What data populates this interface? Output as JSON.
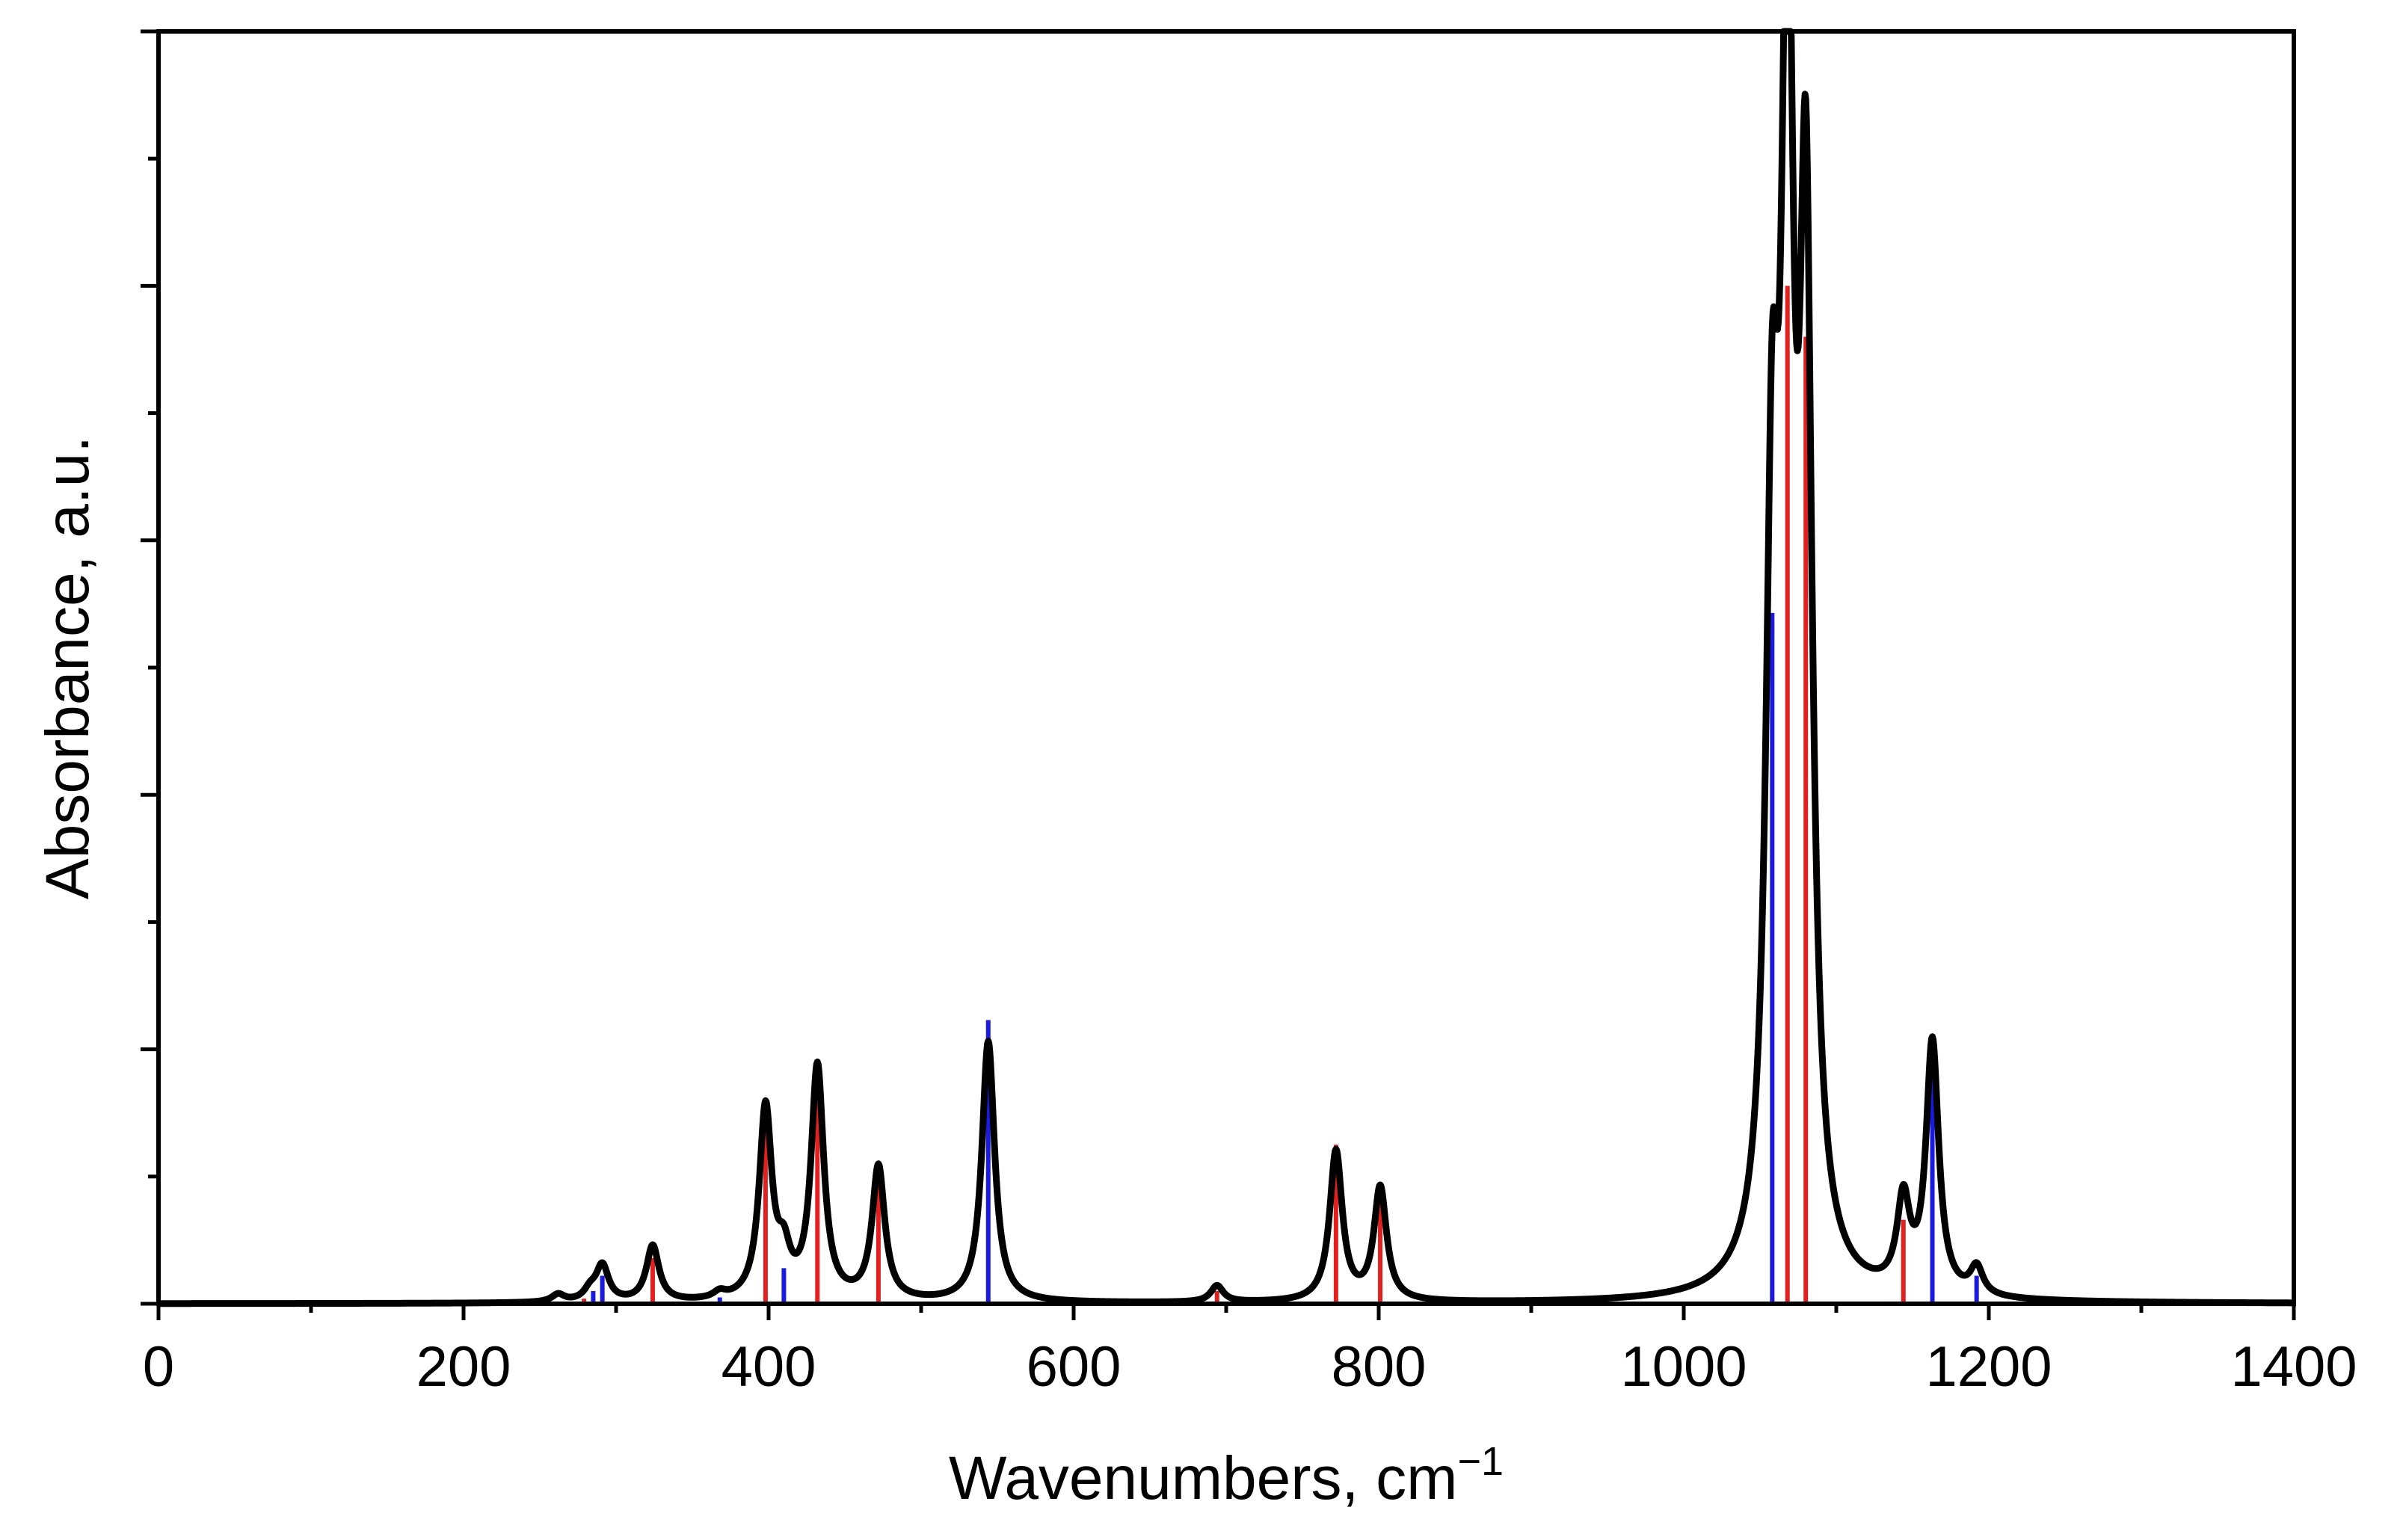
{
  "chart_data": {
    "type": "line",
    "title": "",
    "xlabel": "Wavenumbers, cm",
    "xlabel_superscript": "−1",
    "ylabel": "Absorbance, a.u.",
    "xlim": [
      0,
      1400
    ],
    "ylim": [
      0,
      1.0
    ],
    "x_ticks_major": [
      0,
      200,
      400,
      600,
      800,
      1000,
      1200,
      1400
    ],
    "x_tick_labels": [
      "0",
      "200",
      "400",
      "600",
      "800",
      "1000",
      "1200",
      "1400"
    ],
    "x_ticks_minor_step": 100,
    "y_ticks_major": [
      0,
      0.2,
      0.4,
      0.6,
      0.8,
      1.0
    ],
    "y_ticks_minor_step": 0.1,
    "y_tick_labels_shown": false,
    "grid": false,
    "series": [
      {
        "name": "spectrum",
        "kind": "curve",
        "color": "#000000",
        "lorentzian_half_width": 5,
        "peaks": [
          {
            "x": 262,
            "a": 0.006
          },
          {
            "x": 283,
            "a": 0.008
          },
          {
            "x": 291,
            "a": 0.028
          },
          {
            "x": 324,
            "a": 0.044
          },
          {
            "x": 368,
            "a": 0.005
          },
          {
            "x": 398,
            "a": 0.15
          },
          {
            "x": 410,
            "a": 0.03
          },
          {
            "x": 432,
            "a": 0.183
          },
          {
            "x": 472,
            "a": 0.105
          },
          {
            "x": 544,
            "a": 0.205
          },
          {
            "x": 694,
            "a": 0.013
          },
          {
            "x": 772,
            "a": 0.118
          },
          {
            "x": 801,
            "a": 0.089
          },
          {
            "x": 1058,
            "a": 0.54
          },
          {
            "x": 1068,
            "a": 0.94
          },
          {
            "x": 1080,
            "a": 0.78
          },
          {
            "x": 1144,
            "a": 0.07
          },
          {
            "x": 1163,
            "a": 0.198
          },
          {
            "x": 1192,
            "a": 0.022
          }
        ]
      },
      {
        "name": "red sticks",
        "kind": "sticks",
        "color": "#e32020",
        "points": [
          {
            "x": 279,
            "y": 0.004
          },
          {
            "x": 324,
            "y": 0.036
          },
          {
            "x": 398,
            "y": 0.147
          },
          {
            "x": 432,
            "y": 0.192
          },
          {
            "x": 472,
            "y": 0.11
          },
          {
            "x": 694,
            "y": 0.01
          },
          {
            "x": 772,
            "y": 0.125
          },
          {
            "x": 801,
            "y": 0.095
          },
          {
            "x": 1068,
            "y": 0.8
          },
          {
            "x": 1080,
            "y": 0.76
          },
          {
            "x": 1144,
            "y": 0.066
          }
        ]
      },
      {
        "name": "blue sticks",
        "kind": "sticks",
        "color": "#1a1ae0",
        "points": [
          {
            "x": 285,
            "y": 0.01
          },
          {
            "x": 291,
            "y": 0.022
          },
          {
            "x": 368,
            "y": 0.005
          },
          {
            "x": 410,
            "y": 0.028
          },
          {
            "x": 544,
            "y": 0.223
          },
          {
            "x": 1058,
            "y": 0.543
          },
          {
            "x": 1163,
            "y": 0.21
          },
          {
            "x": 1192,
            "y": 0.022
          }
        ]
      }
    ]
  }
}
